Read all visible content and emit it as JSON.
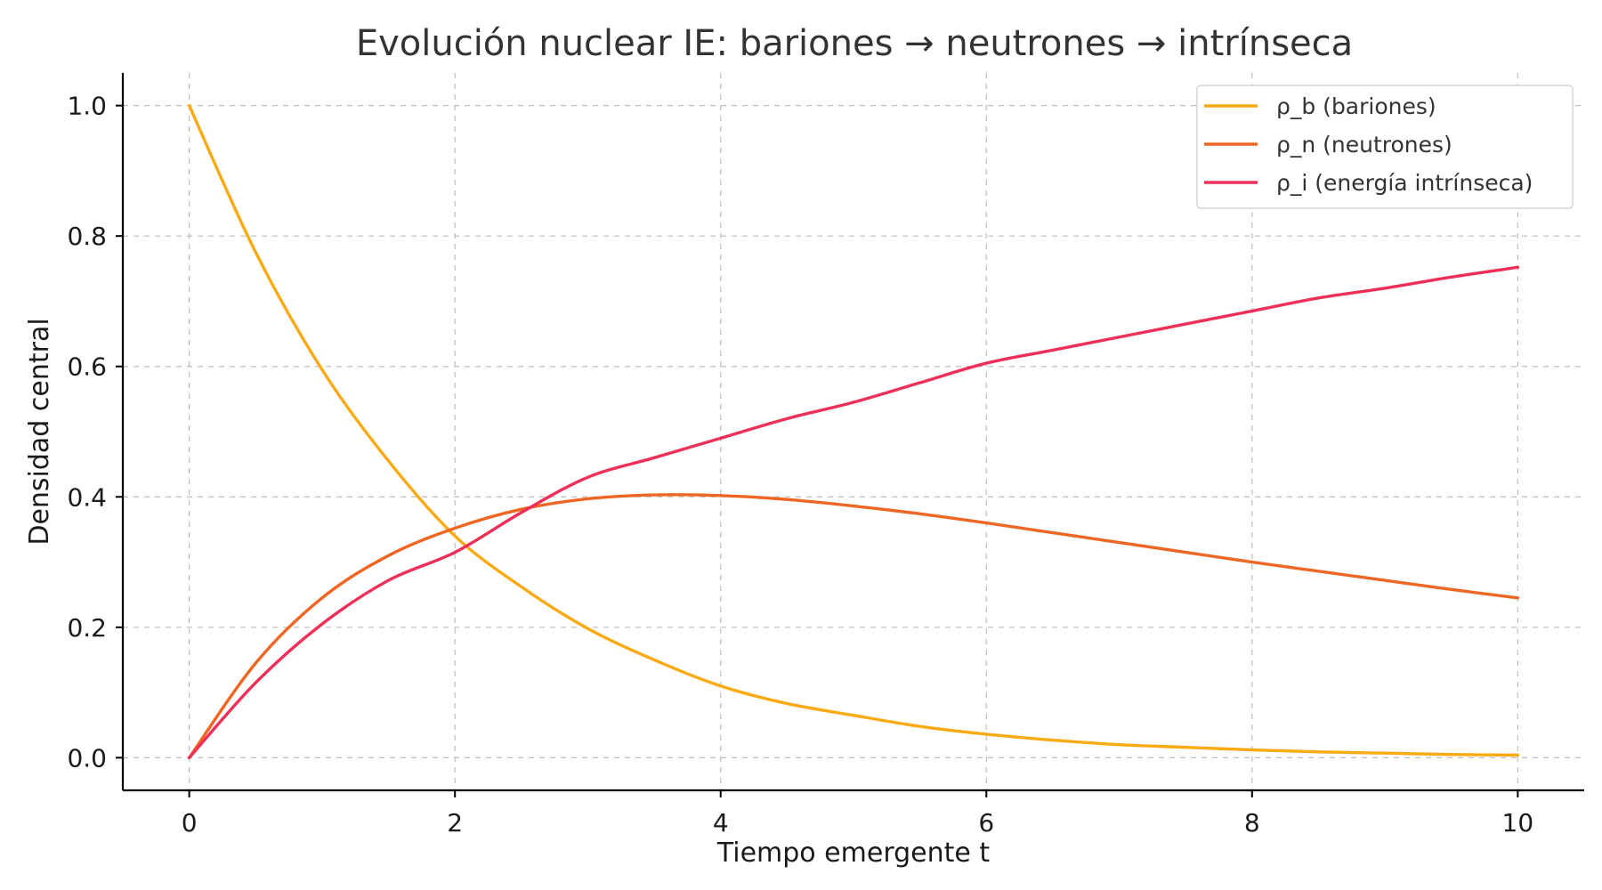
{
  "chart_data": {
    "type": "line",
    "title": "Evolución nuclear IE: bariones → neutrones → intrínseca",
    "xlabel": "Tiempo emergente t",
    "ylabel": "Densidad central",
    "xlim": [
      -0.5,
      10.5
    ],
    "ylim": [
      -0.05,
      1.05
    ],
    "xticks": [
      0,
      2,
      4,
      6,
      8,
      10
    ],
    "xtick_labels": [
      "0",
      "2",
      "4",
      "6",
      "8",
      "10"
    ],
    "yticks": [
      0.0,
      0.2,
      0.4,
      0.6,
      0.8,
      1.0
    ],
    "ytick_labels": [
      "0.0",
      "0.2",
      "0.4",
      "0.6",
      "0.8",
      "1.0"
    ],
    "grid": true,
    "legend_position": "top-right",
    "x": [
      0,
      0.5,
      1,
      1.5,
      2,
      2.5,
      3,
      3.5,
      4,
      4.5,
      5,
      5.5,
      6,
      6.5,
      7,
      7.5,
      8,
      8.5,
      9,
      9.5,
      10
    ],
    "series": [
      {
        "name": "ρ_b (bariones)",
        "color": "#f9aa13",
        "values": [
          1.0,
          0.775,
          0.595,
          0.455,
          0.34,
          0.262,
          0.198,
          0.15,
          0.11,
          0.083,
          0.065,
          0.048,
          0.036,
          0.027,
          0.02,
          0.016,
          0.012,
          0.009,
          0.007,
          0.005,
          0.004
        ]
      },
      {
        "name": "ρ_n (neutrones)",
        "color": "#ef6623",
        "values": [
          0.0,
          0.145,
          0.245,
          0.31,
          0.352,
          0.381,
          0.397,
          0.403,
          0.402,
          0.396,
          0.386,
          0.374,
          0.36,
          0.345,
          0.33,
          0.315,
          0.3,
          0.286,
          0.272,
          0.258,
          0.245
        ]
      },
      {
        "name": "ρ_i (energía intrínseca)",
        "color": "#ee3058",
        "values": [
          0.0,
          0.115,
          0.205,
          0.272,
          0.315,
          0.376,
          0.43,
          0.46,
          0.49,
          0.52,
          0.545,
          0.575,
          0.605,
          0.625,
          0.645,
          0.665,
          0.685,
          0.705,
          0.72,
          0.737,
          0.752
        ]
      }
    ]
  }
}
